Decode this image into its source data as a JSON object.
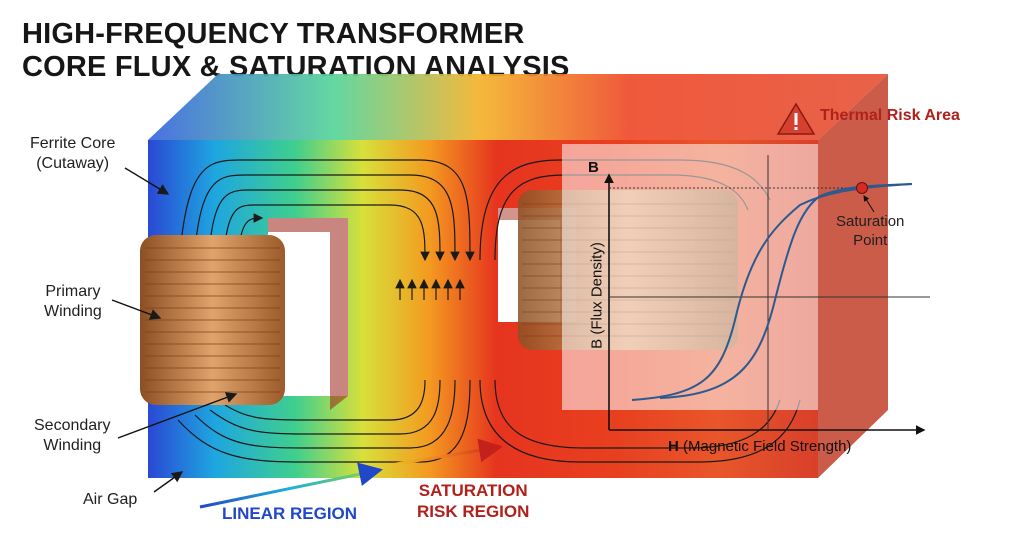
{
  "title": {
    "line1": "HIGH-FREQUENCY TRANSFORMER",
    "line2": "CORE FLUX & SATURATION ANALYSIS"
  },
  "labels": {
    "ferrite_core": [
      "Ferrite Core",
      "(Cutaway)"
    ],
    "primary_winding": [
      "Primary",
      "Winding"
    ],
    "secondary_winding": [
      "Secondary",
      "Winding"
    ],
    "air_gap": "Air Gap",
    "thermal_risk": "Thermal Risk Area",
    "linear_region": "LINEAR REGION",
    "saturation_risk_region": [
      "SATURATION",
      "RISK REGION"
    ]
  },
  "bh_curve": {
    "y_axis_short": "B",
    "y_axis_label": "B (Flux Density)",
    "x_axis_bold": "H",
    "x_axis_label": "(Magnetic Field Strength)",
    "saturation_point": [
      "Saturation",
      "Point"
    ]
  },
  "colors": {
    "linear": "#2048c8",
    "saturation": "#b2201c",
    "curve": "#2c5a8e",
    "copper": "#c9874e",
    "warning": "#d6402e"
  },
  "icons": {
    "warning": "warning-triangle-icon"
  }
}
